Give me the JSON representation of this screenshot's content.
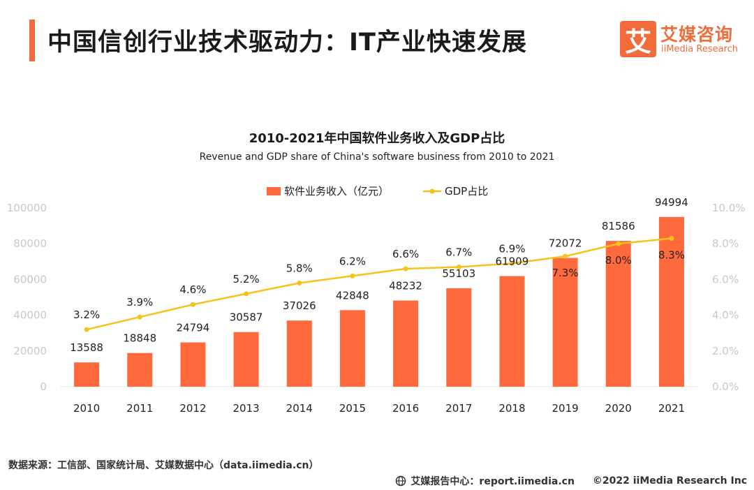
{
  "header": {
    "title": "中国信创行业技术驱动力：IT产业快速发展",
    "brand_mark": "艾",
    "brand_cn": "艾媒咨询",
    "brand_en": "iiMedia Research"
  },
  "colors": {
    "accent": "#F26B3A",
    "bar": "#FF6A3D",
    "line": "#F7C31A",
    "axis_text": "#c8c8c8"
  },
  "chart_data": {
    "type": "bar",
    "title": "2010-2021年中国软件业务收入及GDP占比",
    "subtitle": "Revenue and GDP share of China's software business from 2010 to 2021",
    "categories": [
      "2010",
      "2011",
      "2012",
      "2013",
      "2014",
      "2015",
      "2016",
      "2017",
      "2018",
      "2019",
      "2020",
      "2021"
    ],
    "series": [
      {
        "name": "软件业务收入（亿元）",
        "type": "bar",
        "axis": "left",
        "values": [
          13588,
          18848,
          24794,
          30587,
          37026,
          42848,
          48232,
          55103,
          61909,
          72072,
          81586,
          94994
        ],
        "labels": [
          "13588",
          "18848",
          "24794",
          "30587",
          "37026",
          "42848",
          "48232",
          "55103",
          "61909",
          "72072",
          "81586",
          "94994"
        ]
      },
      {
        "name": "GDP占比",
        "type": "line",
        "axis": "right",
        "values": [
          3.2,
          3.9,
          4.6,
          5.2,
          5.8,
          6.2,
          6.6,
          6.7,
          6.9,
          7.3,
          8.0,
          8.3
        ],
        "labels": [
          "3.2%",
          "3.9%",
          "4.6%",
          "5.2%",
          "5.8%",
          "6.2%",
          "6.6%",
          "6.7%",
          "6.9%",
          "7.3%",
          "8.0%",
          "8.3%"
        ]
      }
    ],
    "y_left": {
      "ylim": [
        0,
        100000
      ],
      "ticks": [
        "0",
        "20000",
        "40000",
        "60000",
        "80000",
        "100000"
      ]
    },
    "y_right": {
      "ylim": [
        0,
        10
      ],
      "ticks": [
        "0.0%",
        "2.0%",
        "4.0%",
        "6.0%",
        "8.0%",
        "10.0%"
      ]
    },
    "legend": "top-center"
  },
  "footer": {
    "source": "数据来源：工信部、国家统计局、艾媒数据中心（data.iimedia.cn）",
    "center": "艾媒报告中心：report.iimedia.cn",
    "copyright": "©2022  iiMedia Research  Inc"
  }
}
